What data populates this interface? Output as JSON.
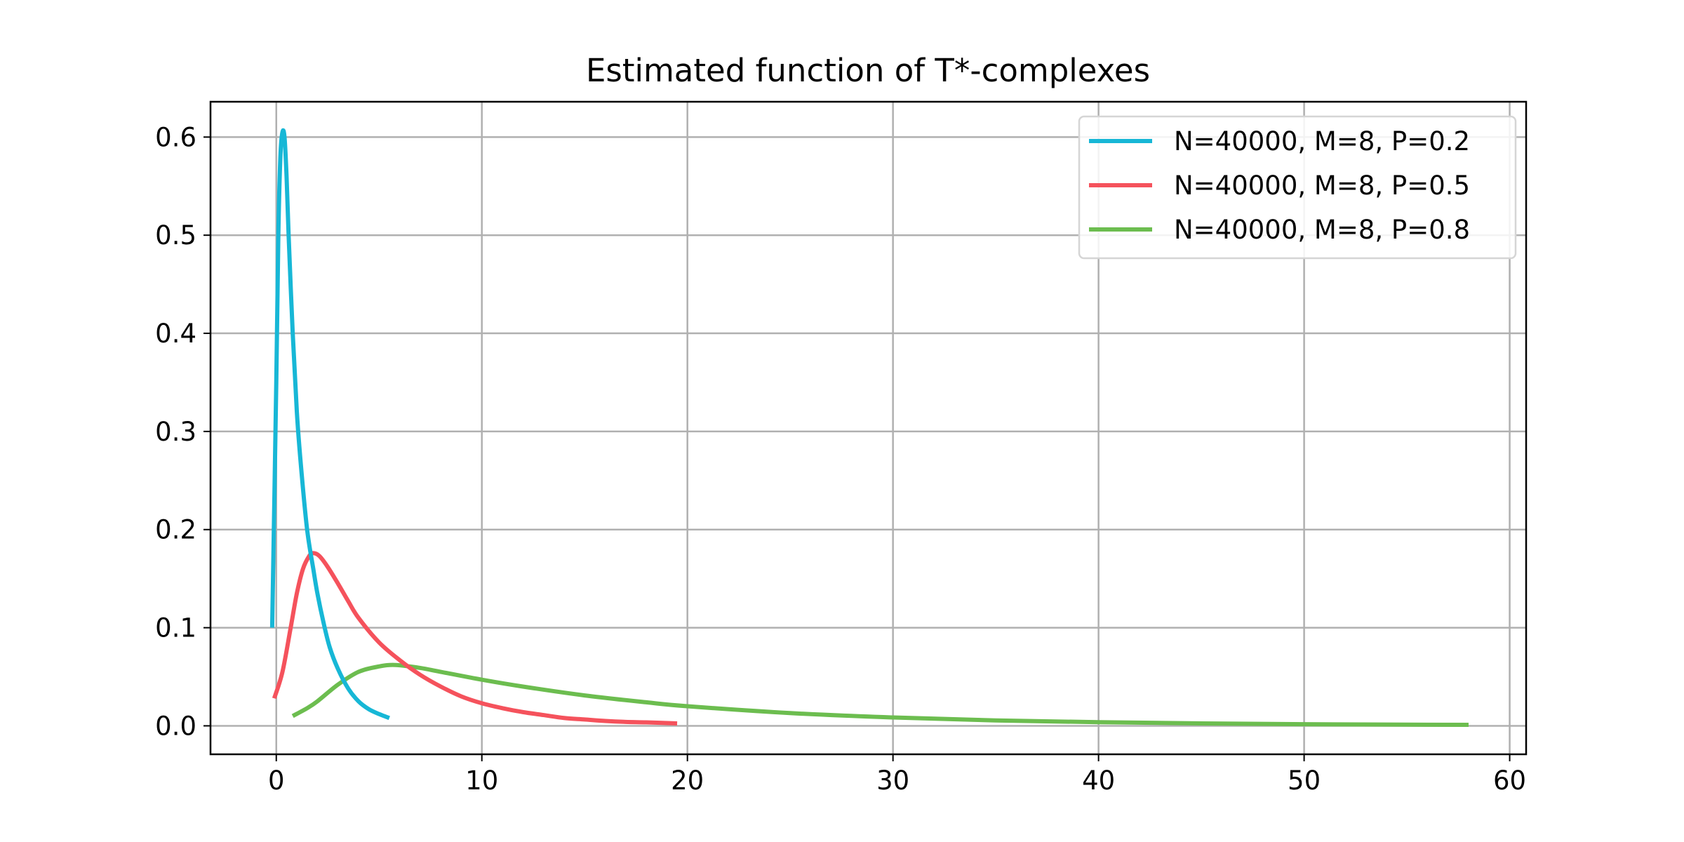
{
  "chart_data": {
    "type": "line",
    "title": "Estimated function of T*-complexes",
    "xlabel": "",
    "ylabel": "",
    "xlim": [
      -3.2,
      60.8
    ],
    "ylim": [
      -0.029,
      0.636
    ],
    "xticks": [
      0,
      10,
      20,
      30,
      40,
      50,
      60
    ],
    "yticks": [
      0.0,
      0.1,
      0.2,
      0.3,
      0.4,
      0.5,
      0.6
    ],
    "ytick_labels": [
      "0.0",
      "0.1",
      "0.2",
      "0.3",
      "0.4",
      "0.5",
      "0.6"
    ],
    "grid": true,
    "legend_position": "top-right",
    "series": [
      {
        "name": "N=40000, M=8, P=0.2",
        "color": "#17b7d6",
        "x": [
          -0.2,
          0.0,
          0.1,
          0.2,
          0.3,
          0.4,
          0.5,
          0.6,
          0.8,
          1.0,
          1.2,
          1.5,
          1.8,
          2.0,
          2.3,
          2.6,
          3.0,
          3.5,
          4.0,
          4.5,
          5.0,
          5.5
        ],
        "y": [
          0.1,
          0.35,
          0.5,
          0.58,
          0.605,
          0.6,
          0.56,
          0.5,
          0.4,
          0.32,
          0.265,
          0.2,
          0.16,
          0.135,
          0.105,
          0.08,
          0.058,
          0.038,
          0.025,
          0.017,
          0.012,
          0.008
        ]
      },
      {
        "name": "N=40000, M=8, P=0.5",
        "color": "#f5525c",
        "x": [
          -0.1,
          0.3,
          0.7,
          1.0,
          1.3,
          1.6,
          1.8,
          2.1,
          2.5,
          3.0,
          3.5,
          4.0,
          5.0,
          6.0,
          7.0,
          8.0,
          9.0,
          10.0,
          11.0,
          12.0,
          13.0,
          14.0,
          15.0,
          16.0,
          17.0,
          18.0,
          19.5
        ],
        "y": [
          0.028,
          0.055,
          0.1,
          0.135,
          0.16,
          0.173,
          0.176,
          0.173,
          0.162,
          0.145,
          0.127,
          0.11,
          0.085,
          0.067,
          0.052,
          0.04,
          0.03,
          0.023,
          0.018,
          0.014,
          0.011,
          0.008,
          0.0065,
          0.005,
          0.004,
          0.0035,
          0.0025
        ]
      },
      {
        "name": "N=40000, M=8, P=0.8",
        "color": "#6cbd4f",
        "x": [
          0.8,
          1.5,
          2.0,
          3.0,
          4.0,
          5.0,
          5.8,
          7.0,
          8.0,
          10.0,
          12.0,
          15.0,
          18.0,
          20.0,
          25.0,
          30.0,
          35.0,
          40.0,
          45.0,
          50.0,
          55.0,
          58.0
        ],
        "y": [
          0.01,
          0.018,
          0.025,
          0.042,
          0.055,
          0.0605,
          0.062,
          0.059,
          0.055,
          0.047,
          0.04,
          0.031,
          0.024,
          0.02,
          0.013,
          0.0085,
          0.0055,
          0.0037,
          0.0025,
          0.0017,
          0.0012,
          0.001
        ]
      }
    ]
  }
}
